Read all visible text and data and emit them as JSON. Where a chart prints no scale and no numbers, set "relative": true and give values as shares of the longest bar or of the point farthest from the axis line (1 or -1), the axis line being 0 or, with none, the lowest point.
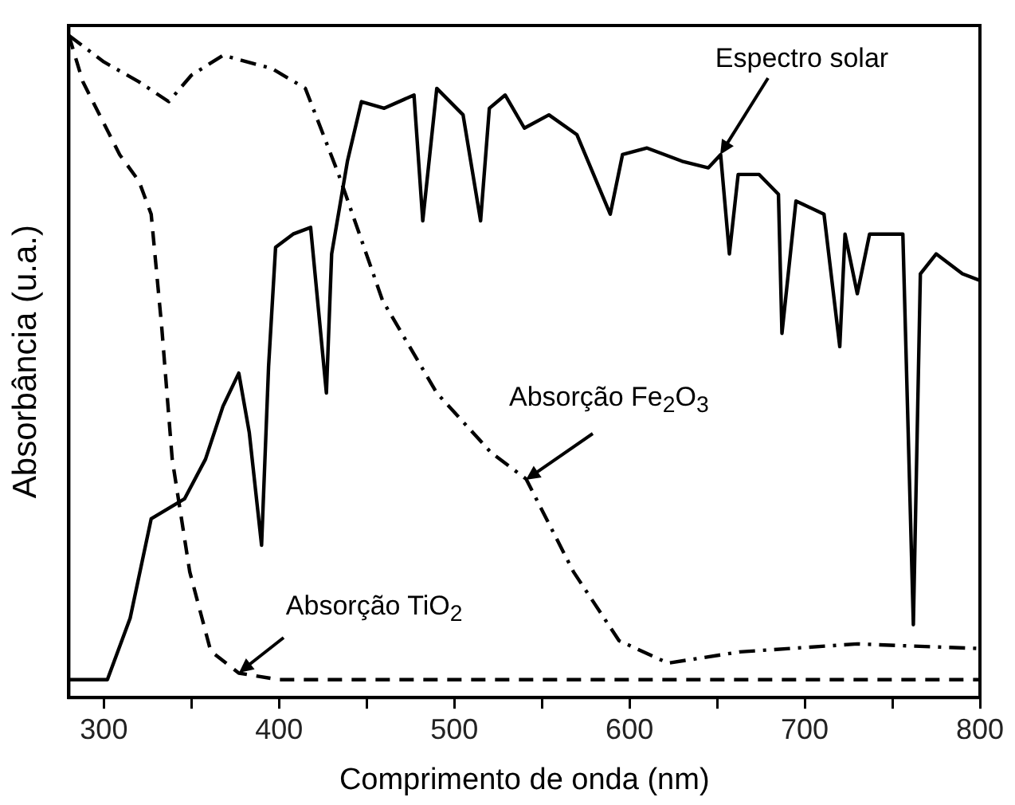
{
  "chart_data": {
    "type": "line",
    "relative": true,
    "xlabel": "Comprimento de onda (nm)",
    "ylabel": "Absorbância (u.a.)",
    "xlim": [
      280,
      800
    ],
    "xticks": [
      300,
      {
        "value": 350,
        "label": null
      },
      400,
      {
        "value": 450,
        "label": null
      },
      500,
      {
        "value": 550,
        "label": null
      },
      600,
      {
        "value": 650,
        "label": null
      },
      700,
      {
        "value": 750,
        "label": null
      },
      800
    ],
    "legend": false,
    "grid": false,
    "marker": "none",
    "series": [
      {
        "color": "#000000",
        "line_style": "solid",
        "x": [
          280,
          302,
          315,
          327,
          346,
          358,
          368,
          377,
          383,
          390,
          394,
          398,
          408,
          418,
          427,
          430,
          439,
          447,
          460,
          477,
          482,
          490,
          505,
          515,
          520,
          529,
          540,
          554,
          570,
          589,
          596,
          610,
          630,
          645,
          652,
          657,
          662,
          674,
          685,
          687,
          695,
          711,
          720,
          723,
          730,
          737,
          756,
          762,
          766,
          775,
          790,
          800
        ],
        "values": [
          0.027,
          0.027,
          0.12,
          0.27,
          0.3,
          0.36,
          0.44,
          0.49,
          0.4,
          0.23,
          0.5,
          0.68,
          0.7,
          0.71,
          0.46,
          0.67,
          0.81,
          0.9,
          0.89,
          0.91,
          0.72,
          0.92,
          0.88,
          0.72,
          0.89,
          0.91,
          0.86,
          0.88,
          0.85,
          0.73,
          0.82,
          0.83,
          0.81,
          0.8,
          0.82,
          0.67,
          0.79,
          0.79,
          0.76,
          0.55,
          0.75,
          0.73,
          0.53,
          0.7,
          0.61,
          0.7,
          0.7,
          0.11,
          0.64,
          0.67,
          0.64,
          0.63
        ]
      },
      {
        "color": "#000000",
        "line_style": "dashdot",
        "x": [
          280,
          300,
          320,
          337,
          350,
          368,
          396,
          415,
          434,
          459,
          490,
          521,
          541,
          568,
          594,
          622,
          663,
          730,
          800
        ],
        "values": [
          1,
          0.96,
          0.93,
          0.9,
          0.94,
          0.97,
          0.95,
          0.92,
          0.79,
          0.6,
          0.46,
          0.37,
          0.33,
          0.19,
          0.086,
          0.052,
          0.069,
          0.081,
          0.074
        ]
      },
      {
        "color": "#000000",
        "line_style": "dashed",
        "x": [
          280,
          288,
          309,
          320,
          327,
          333,
          339,
          349,
          361,
          377,
          400,
          800
        ],
        "values": [
          1,
          0.93,
          0.82,
          0.78,
          0.73,
          0.56,
          0.36,
          0.19,
          0.07,
          0.037,
          0.027,
          0.027
        ]
      }
    ],
    "annotations": [
      {
        "text": "Espectro solar",
        "x": 652,
        "y": 0.82
      },
      {
        "text": "Absorção Fe$_{2}$O$_{3}$",
        "x": 541,
        "y": 0.33
      },
      {
        "text": "Absorção TiO$_{2}$",
        "x": 377,
        "y": 0.037
      }
    ]
  }
}
